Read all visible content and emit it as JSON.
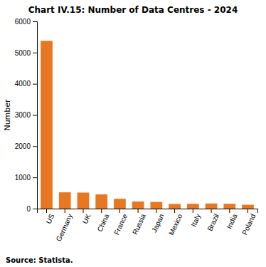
{
  "chart_data": {
    "type": "bar",
    "title": "Chart IV.15: Number of Data Centres - 2024",
    "categories": [
      "US",
      "Germany",
      "UK",
      "China",
      "France",
      "Russia",
      "Japan",
      "Mexico",
      "Italy",
      "Brazil",
      "India",
      "Poland"
    ],
    "values": [
      5375,
      522,
      514,
      456,
      315,
      228,
      215,
      150,
      155,
      165,
      155,
      125
    ],
    "color": "#E87722",
    "ylabel": "Number",
    "source": "Source: Statista.",
    "ylim": [
      0,
      6000
    ],
    "yticks": [
      0,
      1000,
      2000,
      3000,
      4000,
      5000,
      6000
    ],
    "grid": false
  }
}
